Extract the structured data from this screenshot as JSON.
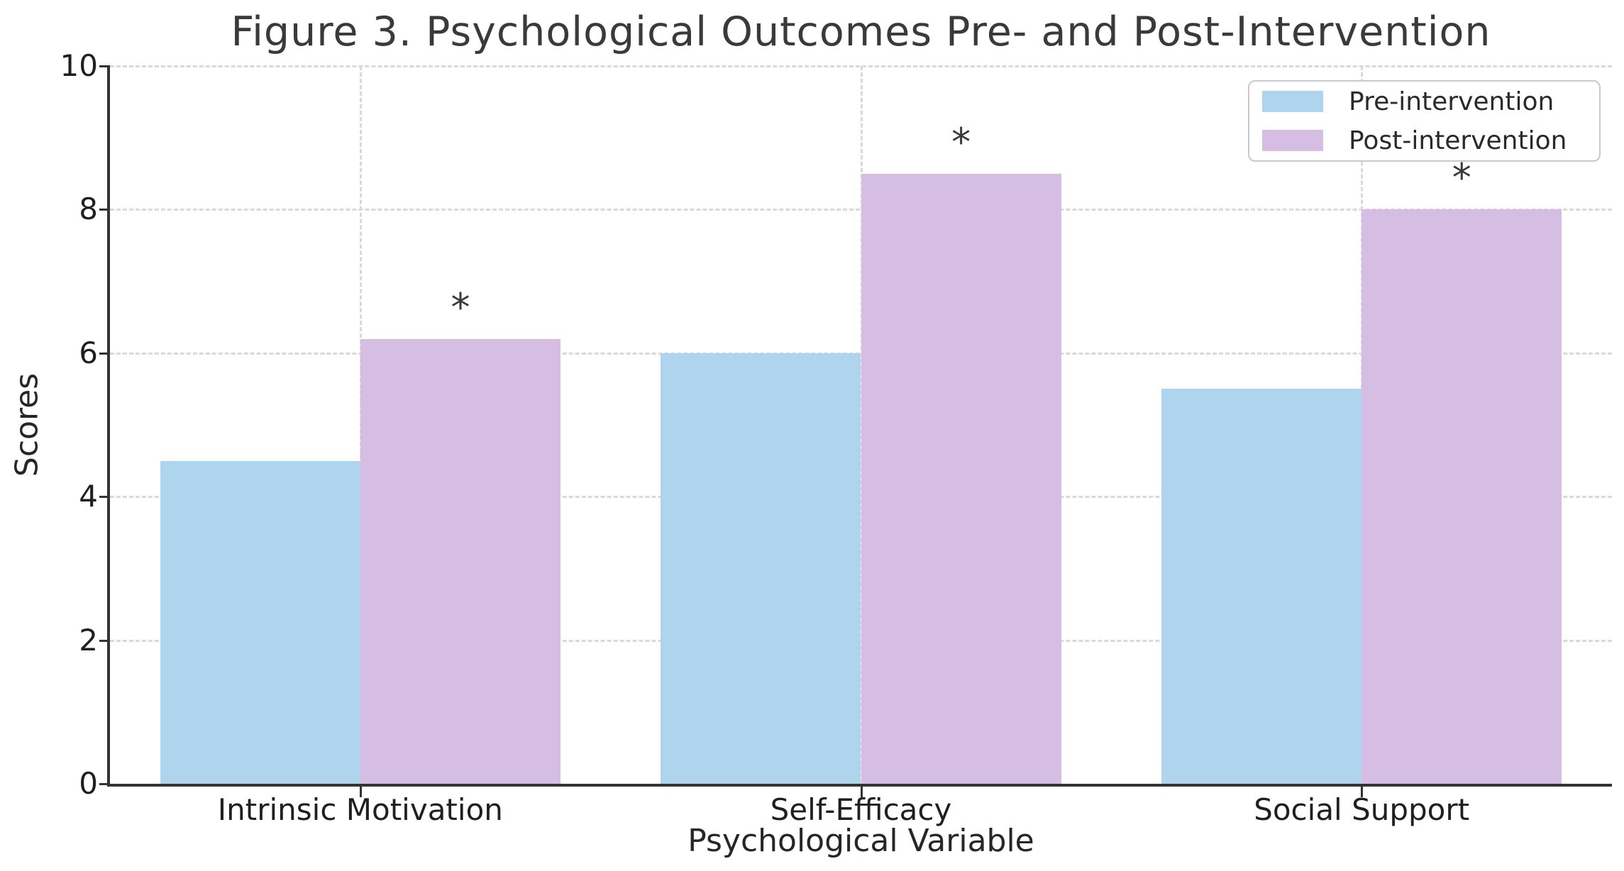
{
  "chart_data": {
    "type": "bar",
    "title": "Figure 3. Psychological Outcomes Pre- and Post-Intervention",
    "xlabel": "Psychological Variable",
    "ylabel": "Scores",
    "categories": [
      "Intrinsic Motivation",
      "Self-Efficacy",
      "Social Support"
    ],
    "series": [
      {
        "name": "Pre-intervention",
        "color": "#aed4ee",
        "values": [
          4.5,
          6.0,
          5.5
        ]
      },
      {
        "name": "Post-intervention",
        "color": "#d5bde3",
        "values": [
          6.2,
          8.5,
          8.0
        ]
      }
    ],
    "ylim": [
      0,
      10
    ],
    "yticks": [
      0,
      2,
      4,
      6,
      8,
      10
    ],
    "grid": "dashed horizontal gridlines at y ticks and dashed vertical gridlines at category centers",
    "legend_position": "upper right",
    "bar_width_fraction": 0.4,
    "annotations": {
      "significance_marker": "*",
      "marker_series": "Post-intervention",
      "per_category": [
        true,
        true,
        true
      ]
    }
  },
  "colors": {
    "background": "#ffffff",
    "pre_intervention": "#aed4ee",
    "post_intervention": "#d5bde3",
    "gridline": "#d9d9d9",
    "spine": "#333333",
    "tick_text": "#1f1f1f",
    "title_text": "#3a3a3a",
    "legend_border": "#c9c9c9"
  }
}
